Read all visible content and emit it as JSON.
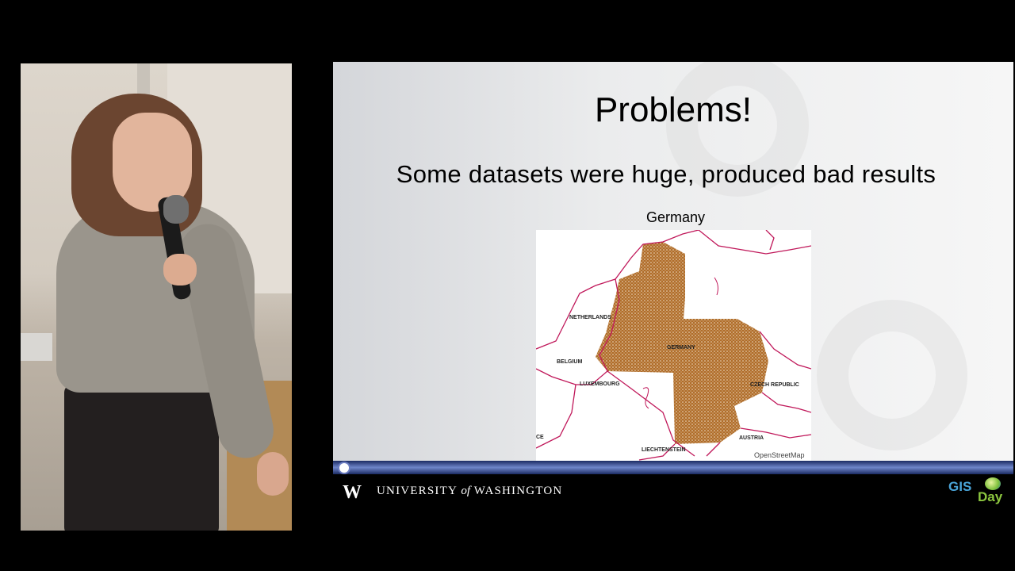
{
  "slide": {
    "title": "Problems!",
    "subtitle": "Some datasets were huge, produced bad results",
    "map_caption": "Germany",
    "map_labels": [
      "NETHERLANDS",
      "GERMANY",
      "BELGIUM",
      "LUXEMBOURG",
      "CZECH REPUBLIC",
      "AUSTRIA",
      "LIECHTENSTEIN",
      "CE"
    ],
    "map_attribution": "OpenStreetMap"
  },
  "footer": {
    "logo_mark": "W",
    "university_prefix": "UNIVERSITY",
    "university_of": "of",
    "university_suffix": "WASHINGTON",
    "gis_logo_1": "GIS",
    "gis_logo_2": "Day"
  },
  "colors": {
    "slide_background": "#f1f1f1",
    "border_lines": "#c0185a",
    "data_fill": "#9c5a1c",
    "progress_bar": "#4a5fa8",
    "gis_blue": "#4aa4d8",
    "gis_green": "#8cc63f"
  },
  "icons": [
    "microphone-icon",
    "globe-icon"
  ]
}
